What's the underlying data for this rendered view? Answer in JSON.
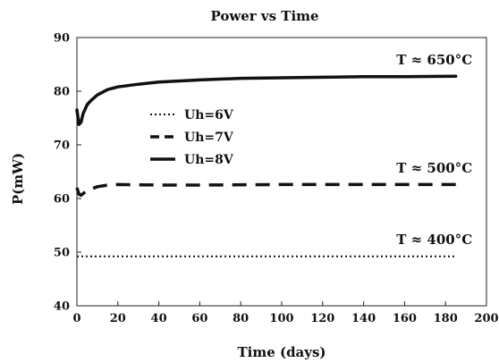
{
  "chart_data": {
    "type": "line",
    "title": "Power vs Time",
    "xlabel": "Time (days)",
    "ylabel": "P(mW)",
    "xlim": [
      0,
      200
    ],
    "ylim": [
      40,
      90
    ],
    "x_ticks": [
      "0",
      "20",
      "40",
      "60",
      "80",
      "100",
      "120",
      "140",
      "160",
      "180",
      "200"
    ],
    "y_ticks": [
      "40",
      "50",
      "60",
      "70",
      "80",
      "90"
    ],
    "grid": false,
    "legend_position": "center-left",
    "series": [
      {
        "name": "Uh=6V",
        "style": "dotted",
        "color": "#111111",
        "x": [
          0,
          20,
          40,
          60,
          80,
          100,
          120,
          140,
          160,
          185
        ],
        "y": [
          49.2,
          49.2,
          49.2,
          49.2,
          49.2,
          49.2,
          49.2,
          49.2,
          49.2,
          49.2
        ]
      },
      {
        "name": "Uh=7V",
        "style": "dashed",
        "color": "#111111",
        "x": [
          0,
          1,
          2,
          5,
          10,
          15,
          20,
          40,
          60,
          100,
          140,
          185
        ],
        "y": [
          62.0,
          60.8,
          60.6,
          61.5,
          62.2,
          62.5,
          62.6,
          62.5,
          62.5,
          62.6,
          62.6,
          62.6
        ]
      },
      {
        "name": "Uh=8V",
        "style": "solid",
        "color": "#111111",
        "x": [
          0,
          1,
          2,
          3,
          5,
          7,
          10,
          15,
          20,
          30,
          40,
          60,
          80,
          100,
          120,
          140,
          160,
          185
        ],
        "y": [
          76.5,
          73.8,
          74.2,
          75.8,
          77.5,
          78.3,
          79.3,
          80.3,
          80.8,
          81.3,
          81.7,
          82.1,
          82.4,
          82.5,
          82.6,
          82.7,
          82.7,
          82.8
        ]
      }
    ],
    "annotations": [
      {
        "text": "T ≈ 650°C",
        "x": 156,
        "y": 85
      },
      {
        "text": "T ≈ 500°C",
        "x": 156,
        "y": 64.8
      },
      {
        "text": "T ≈ 400°C",
        "x": 156,
        "y": 51.5
      }
    ]
  }
}
